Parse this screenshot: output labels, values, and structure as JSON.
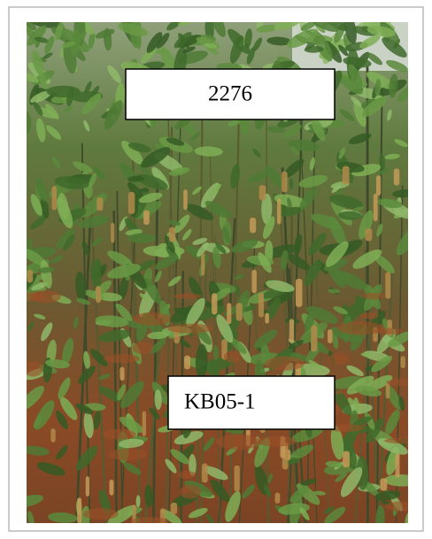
{
  "labels": [
    "2276",
    "KB05-1"
  ]
}
